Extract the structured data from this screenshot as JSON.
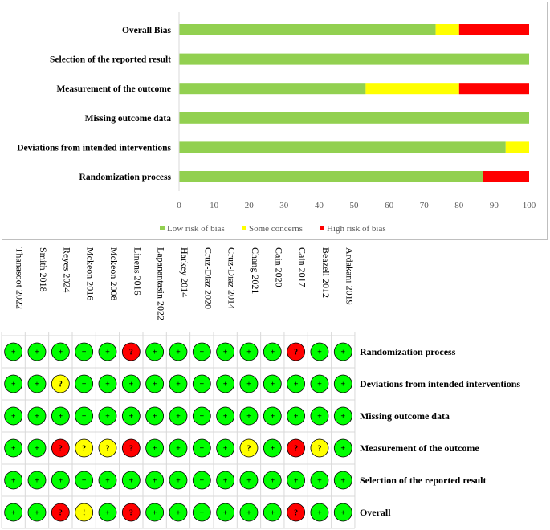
{
  "chart_data": [
    {
      "type": "bar",
      "orientation": "horizontal",
      "stacked": true,
      "title": "",
      "categories": [
        "Overall Bias",
        "Selection of the reported result",
        "Measurement of the outcome",
        "Missing outcome data",
        "Deviations from intended interventions",
        "Randomization process"
      ],
      "series": [
        {
          "name": "Low risk of bias",
          "color": "#92d050",
          "values": [
            73.3,
            100,
            53.3,
            100,
            93.3,
            86.7
          ]
        },
        {
          "name": "Some concerns",
          "color": "#ffff00",
          "values": [
            6.7,
            0,
            26.7,
            0,
            6.7,
            0
          ]
        },
        {
          "name": "High risk of bias",
          "color": "#ff0000",
          "values": [
            20,
            0,
            20,
            0,
            0,
            13.3
          ]
        }
      ],
      "xlim": [
        0,
        100
      ],
      "xticks": [
        "0",
        "10",
        "20",
        "30",
        "40",
        "50",
        "60",
        "70",
        "80",
        "90",
        "100"
      ],
      "xlabel": "",
      "ylabel": "",
      "legend_position": "bottom"
    },
    {
      "type": "table",
      "studies": [
        "Thanasoot 2022",
        "Smith 2018",
        "Reyes 2024",
        "Mckeon 2016",
        "Mckeon 2008",
        "Linens 2016",
        "Lapanantasin 2022",
        "Harkey 2014",
        "Cruz-Diaz 2020",
        "Cruz-Diaz 2014",
        "Chang 2021",
        "Cain 2020",
        "Cain 2017",
        "Beazell 2012",
        "Ardakani 2019"
      ],
      "domains": [
        "Randomization process",
        "Deviations from intended interventions",
        "Missing outcome data",
        "Measurement of the outcome",
        "Selection of the reported result",
        "Overall"
      ],
      "judgements": [
        [
          "+",
          "+",
          "+",
          "+",
          "+",
          "?",
          "+",
          "+",
          "+",
          "+",
          "+",
          "+",
          "?",
          "+",
          "+"
        ],
        [
          "+",
          "+",
          "?",
          "+",
          "+",
          "+",
          "+",
          "+",
          "+",
          "+",
          "+",
          "+",
          "+",
          "+",
          "+"
        ],
        [
          "+",
          "+",
          "+",
          "+",
          "+",
          "+",
          "+",
          "+",
          "+",
          "+",
          "+",
          "+",
          "+",
          "+",
          "+"
        ],
        [
          "+",
          "+",
          "?",
          "?",
          "?",
          "?",
          "+",
          "+",
          "+",
          "+",
          "?",
          "+",
          "?",
          "?",
          "+"
        ],
        [
          "+",
          "+",
          "+",
          "+",
          "+",
          "+",
          "+",
          "+",
          "+",
          "+",
          "+",
          "+",
          "+",
          "+",
          "+"
        ],
        [
          "+",
          "+",
          "?",
          "!",
          "+",
          "?",
          "+",
          "+",
          "+",
          "+",
          "+",
          "+",
          "?",
          "+",
          "+"
        ]
      ],
      "judgement_colors": [
        [
          "g",
          "g",
          "g",
          "g",
          "g",
          "r",
          "g",
          "g",
          "g",
          "g",
          "g",
          "g",
          "r",
          "g",
          "g"
        ],
        [
          "g",
          "g",
          "y",
          "g",
          "g",
          "g",
          "g",
          "g",
          "g",
          "g",
          "g",
          "g",
          "g",
          "g",
          "g"
        ],
        [
          "g",
          "g",
          "g",
          "g",
          "g",
          "g",
          "g",
          "g",
          "g",
          "g",
          "g",
          "g",
          "g",
          "g",
          "g"
        ],
        [
          "g",
          "g",
          "r",
          "y",
          "y",
          "r",
          "g",
          "g",
          "g",
          "g",
          "y",
          "g",
          "r",
          "y",
          "g"
        ],
        [
          "g",
          "g",
          "g",
          "g",
          "g",
          "g",
          "g",
          "g",
          "g",
          "g",
          "g",
          "g",
          "g",
          "g",
          "g"
        ],
        [
          "g",
          "g",
          "r",
          "y",
          "g",
          "r",
          "g",
          "g",
          "g",
          "g",
          "g",
          "g",
          "r",
          "g",
          "g"
        ]
      ],
      "colors": {
        "g": "#00ff00",
        "y": "#ffff00",
        "r": "#ff0000",
        "gridline": "#d9d9d9",
        "axis": "#bfbfbf"
      }
    }
  ]
}
